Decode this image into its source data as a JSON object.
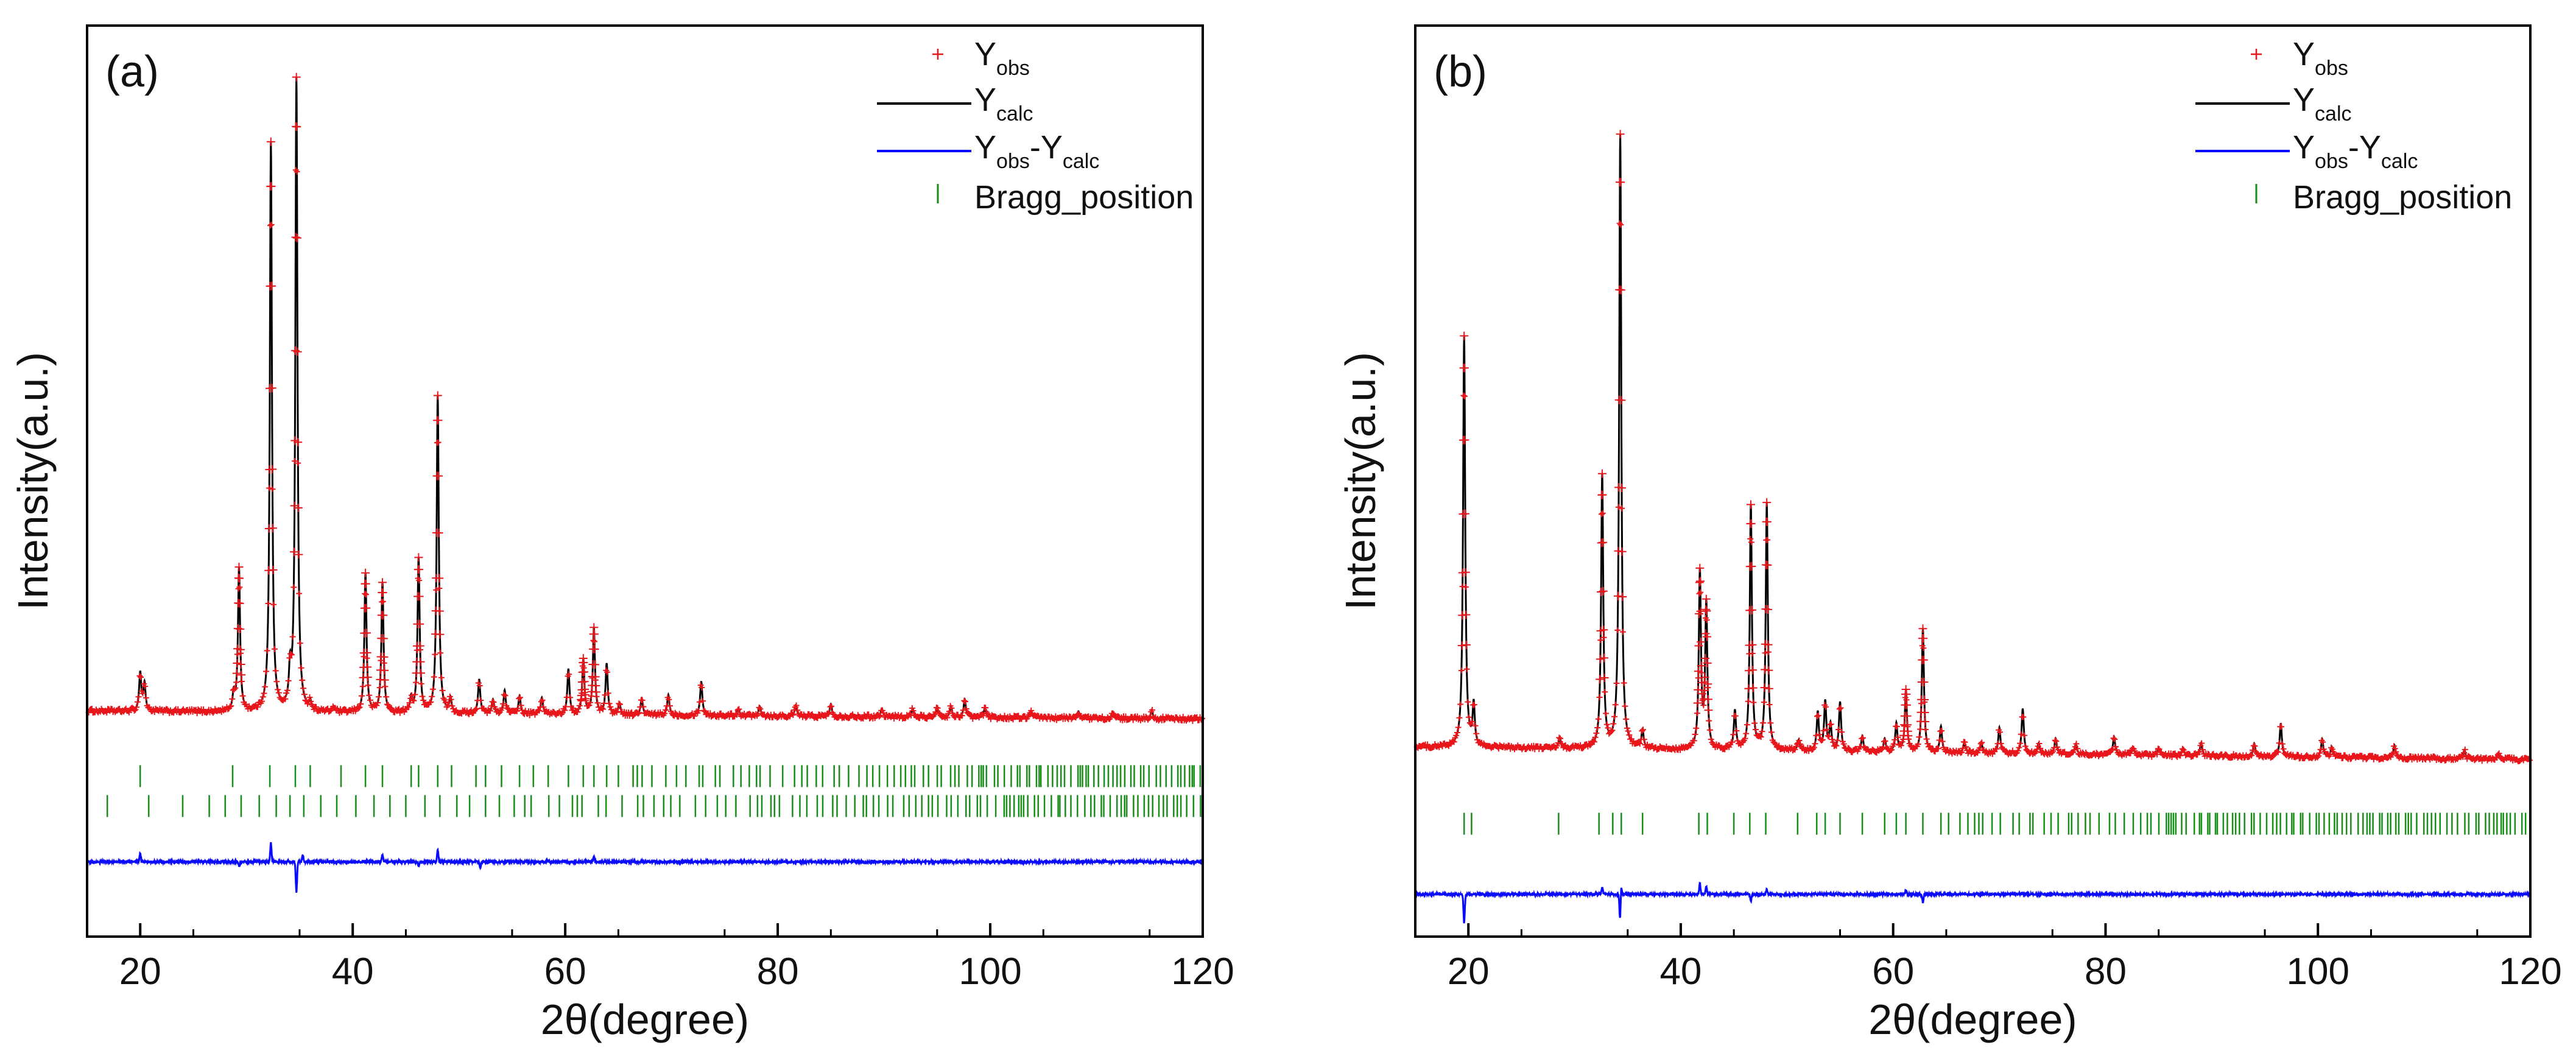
{
  "chart_data": [
    {
      "type": "scatter",
      "panel_label": "(a)",
      "xlabel": "2θ(degree)",
      "ylabel": "Intensity(a.u.)",
      "xlim": [
        15,
        120
      ],
      "xticks": [
        20,
        40,
        60,
        80,
        100,
        120
      ],
      "yticks": [],
      "ylim": [
        -160,
        510
      ],
      "legend": {
        "position": "top-right",
        "items": [
          {
            "kind": "marker",
            "base": "Y",
            "sub": "obs",
            "color": "#e8161b"
          },
          {
            "kind": "line",
            "base": "Y",
            "sub": "calc",
            "color": "#000000"
          },
          {
            "kind": "line",
            "base": "Y",
            "sub": "obs",
            "mid": "-Y",
            "sub2": "calc",
            "color": "#0a0aff"
          },
          {
            "kind": "tick",
            "text": "Bragg_position",
            "color": "#1a8c1a"
          }
        ]
      },
      "series": [
        {
          "name": "Y_obs",
          "style": "marker",
          "color": "#e8161b"
        },
        {
          "name": "Y_calc",
          "style": "line",
          "color": "#000000"
        },
        {
          "name": "Y_obs-Y_calc",
          "style": "line",
          "color": "#0a0aff"
        },
        {
          "name": "Bragg_position",
          "style": "ticks",
          "color": "#1a8c1a"
        }
      ],
      "background": {
        "start": 6,
        "end": 0
      },
      "difference_offset": -105,
      "peaks": [
        [
          20.0,
          28
        ],
        [
          20.4,
          20
        ],
        [
          28.8,
          12
        ],
        [
          29.3,
          105
        ],
        [
          32.3,
          418
        ],
        [
          34.1,
          25
        ],
        [
          34.7,
          465
        ],
        [
          36.0,
          6
        ],
        [
          38.2,
          4
        ],
        [
          41.2,
          102
        ],
        [
          42.8,
          95
        ],
        [
          45.5,
          10
        ],
        [
          46.2,
          113
        ],
        [
          48.0,
          233
        ],
        [
          49.2,
          10
        ],
        [
          51.9,
          25
        ],
        [
          53.2,
          10
        ],
        [
          54.3,
          17
        ],
        [
          55.7,
          13
        ],
        [
          57.8,
          12
        ],
        [
          60.3,
          33
        ],
        [
          61.7,
          40
        ],
        [
          62.7,
          63
        ],
        [
          63.9,
          37
        ],
        [
          65.1,
          8
        ],
        [
          67.2,
          12
        ],
        [
          69.7,
          15
        ],
        [
          72.8,
          25
        ],
        [
          76.3,
          5
        ],
        [
          78.3,
          7
        ],
        [
          81.7,
          8
        ],
        [
          85.0,
          9
        ],
        [
          89.8,
          6
        ],
        [
          92.7,
          6
        ],
        [
          95.0,
          7
        ],
        [
          96.3,
          8
        ],
        [
          97.6,
          13
        ],
        [
          99.5,
          7
        ],
        [
          103.8,
          5
        ],
        [
          108.3,
          5
        ],
        [
          111.5,
          4
        ],
        [
          115.2,
          6
        ]
      ],
      "diff_spikes": [
        [
          20.0,
          6
        ],
        [
          29.3,
          -3
        ],
        [
          32.3,
          14
        ],
        [
          34.7,
          -22
        ],
        [
          35.3,
          5
        ],
        [
          42.8,
          5
        ],
        [
          46.2,
          -3
        ],
        [
          48.0,
          9
        ],
        [
          52.0,
          -4
        ],
        [
          62.7,
          4
        ]
      ],
      "bragg_rows": [
        {
          "offset": -42,
          "start": 20.0,
          "mean_spacing": 1.05,
          "first": [
            20.0,
            28.7,
            32.2,
            34.6,
            36.0,
            38.9,
            41.2,
            42.8,
            45.5,
            46.2,
            48.0,
            49.3,
            51.6,
            52.5,
            54.0,
            55.7,
            57.0,
            58.4,
            60.3,
            61.7,
            62.7,
            63.9,
            65.0
          ]
        },
        {
          "offset": -64,
          "start": 16.9,
          "mean_spacing": 1.25,
          "first": [
            16.9,
            20.8,
            24.0,
            26.5,
            28.0,
            29.5,
            31.2,
            32.8,
            34.1,
            35.4,
            37.0,
            38.5,
            40.3,
            42.0,
            43.5,
            45.0,
            46.8,
            48.2,
            49.8,
            51.0,
            52.5,
            53.8,
            55.2
          ]
        }
      ]
    },
    {
      "type": "scatter",
      "panel_label": "(b)",
      "xlabel": "2θ(degree)",
      "ylabel": "Intensity(a.u.)",
      "xlim": [
        15,
        120
      ],
      "xticks": [
        20,
        40,
        60,
        80,
        100,
        120
      ],
      "yticks": [],
      "ylim": [
        -140,
        570
      ],
      "legend": {
        "position": "top-right",
        "items": [
          {
            "kind": "marker",
            "base": "Y",
            "sub": "obs",
            "color": "#e8161b"
          },
          {
            "kind": "line",
            "base": "Y",
            "sub": "calc",
            "color": "#000000"
          },
          {
            "kind": "line",
            "base": "Y",
            "sub": "obs",
            "mid": "-Y",
            "sub2": "calc",
            "color": "#0a0aff"
          },
          {
            "kind": "tick",
            "text": "Bragg_position",
            "color": "#1a8c1a"
          }
        ]
      },
      "series": [
        {
          "name": "Y_obs",
          "style": "marker",
          "color": "#e8161b"
        },
        {
          "name": "Y_calc",
          "style": "line",
          "color": "#000000"
        },
        {
          "name": "Y_obs-Y_calc",
          "style": "line",
          "color": "#0a0aff"
        },
        {
          "name": "Bragg_position",
          "style": "ticks",
          "color": "#1a8c1a"
        }
      ],
      "background": {
        "start": 8,
        "end": -2
      },
      "difference_offset": -107,
      "peaks": [
        [
          19.6,
          320
        ],
        [
          20.5,
          32
        ],
        [
          28.6,
          8
        ],
        [
          32.6,
          212
        ],
        [
          34.3,
          478
        ],
        [
          36.4,
          14
        ],
        [
          41.8,
          137
        ],
        [
          42.4,
          112
        ],
        [
          45.1,
          30
        ],
        [
          46.6,
          190
        ],
        [
          48.1,
          192
        ],
        [
          51.1,
          8
        ],
        [
          52.9,
          30
        ],
        [
          53.6,
          38
        ],
        [
          54.1,
          20
        ],
        [
          55.0,
          38
        ],
        [
          57.1,
          12
        ],
        [
          59.2,
          10
        ],
        [
          60.3,
          22
        ],
        [
          61.2,
          48
        ],
        [
          62.8,
          96
        ],
        [
          64.5,
          20
        ],
        [
          66.7,
          8
        ],
        [
          68.3,
          8
        ],
        [
          70.0,
          20
        ],
        [
          72.2,
          35
        ],
        [
          73.7,
          8
        ],
        [
          75.3,
          12
        ],
        [
          77.2,
          8
        ],
        [
          80.8,
          14
        ],
        [
          82.6,
          6
        ],
        [
          85.0,
          5
        ],
        [
          87.3,
          6
        ],
        [
          89.0,
          10
        ],
        [
          94.0,
          10
        ],
        [
          96.5,
          26
        ],
        [
          100.4,
          14
        ],
        [
          101.3,
          8
        ],
        [
          107.2,
          10
        ],
        [
          113.8,
          7
        ],
        [
          117.0,
          4
        ]
      ],
      "diff_spikes": [
        [
          19.6,
          -22
        ],
        [
          32.6,
          5
        ],
        [
          34.3,
          -30
        ],
        [
          34.35,
          18
        ],
        [
          41.8,
          8
        ],
        [
          42.4,
          6
        ],
        [
          46.6,
          -5
        ],
        [
          48.1,
          4
        ],
        [
          61.2,
          3
        ],
        [
          62.8,
          -6
        ]
      ],
      "bragg_rows": [
        {
          "offset": -52,
          "start": 19.6,
          "mean_spacing": 0.9,
          "first": [
            19.6,
            20.3,
            28.5,
            32.3,
            33.6,
            34.4,
            36.4,
            41.7,
            42.5,
            45.0,
            46.5,
            48.0,
            51.0,
            52.8,
            53.6,
            55.0,
            57.1,
            59.2,
            60.3,
            61.2,
            62.8,
            64.5
          ]
        }
      ]
    }
  ]
}
